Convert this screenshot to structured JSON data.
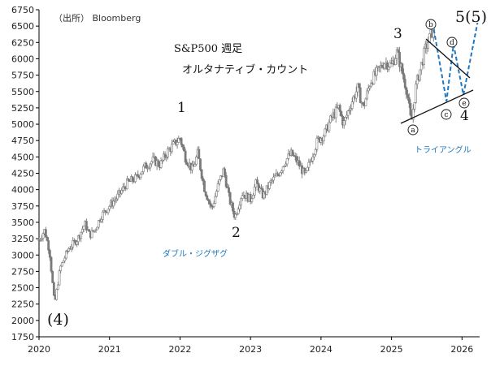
{
  "source": "（出所） Bloomberg",
  "title": "S&P500 週足",
  "subtitle": "オルタナティブ・カウント",
  "labels": {
    "zigzag": "ダブル・ジグザグ",
    "triangle": "トライアングル"
  },
  "colors": {
    "candle": "#7a7a7a",
    "blue": "#1f78c1",
    "axis": "#000000"
  },
  "chart_data": {
    "type": "candlestick",
    "x_axis": {
      "ticks": [
        "2020",
        "2021",
        "2022",
        "2023",
        "2024",
        "2025",
        "2026"
      ],
      "range": [
        2020.0,
        2026.25
      ]
    },
    "y_axis": {
      "ticks": [
        1750,
        2000,
        2250,
        2500,
        2750,
        3000,
        3250,
        3500,
        3750,
        4000,
        4250,
        4500,
        4750,
        5000,
        5250,
        5500,
        5750,
        6000,
        6250,
        6500,
        6750
      ],
      "range": [
        1750,
        6750
      ]
    },
    "price_path": [
      [
        2020.0,
        3230
      ],
      [
        2020.08,
        3380
      ],
      [
        2020.15,
        3050
      ],
      [
        2020.22,
        2240
      ],
      [
        2020.3,
        2800
      ],
      [
        2020.42,
        3100
      ],
      [
        2020.55,
        3250
      ],
      [
        2020.65,
        3480
      ],
      [
        2020.72,
        3300
      ],
      [
        2020.8,
        3400
      ],
      [
        2020.88,
        3600
      ],
      [
        2021.0,
        3750
      ],
      [
        2021.12,
        3900
      ],
      [
        2021.25,
        4100
      ],
      [
        2021.38,
        4180
      ],
      [
        2021.5,
        4350
      ],
      [
        2021.62,
        4450
      ],
      [
        2021.72,
        4380
      ],
      [
        2021.82,
        4580
      ],
      [
        2021.92,
        4700
      ],
      [
        2022.0,
        4790
      ],
      [
        2022.08,
        4480
      ],
      [
        2022.18,
        4300
      ],
      [
        2022.25,
        4550
      ],
      [
        2022.35,
        4000
      ],
      [
        2022.45,
        3700
      ],
      [
        2022.55,
        4100
      ],
      [
        2022.62,
        4300
      ],
      [
        2022.7,
        3850
      ],
      [
        2022.78,
        3580
      ],
      [
        2022.88,
        3950
      ],
      [
        2023.0,
        3850
      ],
      [
        2023.08,
        4100
      ],
      [
        2023.18,
        3900
      ],
      [
        2023.28,
        4100
      ],
      [
        2023.4,
        4250
      ],
      [
        2023.5,
        4450
      ],
      [
        2023.58,
        4550
      ],
      [
        2023.68,
        4400
      ],
      [
        2023.78,
        4200
      ],
      [
        2023.85,
        4450
      ],
      [
        2023.95,
        4750
      ],
      [
        2024.05,
        4850
      ],
      [
        2024.15,
        5100
      ],
      [
        2024.25,
        5250
      ],
      [
        2024.32,
        5000
      ],
      [
        2024.42,
        5300
      ],
      [
        2024.52,
        5550
      ],
      [
        2024.6,
        5250
      ],
      [
        2024.7,
        5650
      ],
      [
        2024.8,
        5800
      ],
      [
        2024.9,
        5950
      ],
      [
        2025.0,
        5900
      ],
      [
        2025.08,
        6100
      ],
      [
        2025.15,
        5800
      ],
      [
        2025.22,
        5500
      ],
      [
        2025.28,
        5000
      ],
      [
        2025.35,
        5600
      ],
      [
        2025.42,
        5900
      ],
      [
        2025.48,
        6150
      ],
      [
        2025.55,
        6350
      ],
      [
        2025.6,
        6450
      ]
    ],
    "wave_labels": [
      {
        "label": "(4)",
        "x": 2020.22,
        "y": 2240
      },
      {
        "label": "1",
        "x": 2022.0,
        "y": 4790
      },
      {
        "label": "2",
        "x": 2022.78,
        "y": 3580
      },
      {
        "label": "3",
        "x": 2025.08,
        "y": 6100
      },
      {
        "label": "4",
        "x": 2026.0,
        "y": 5250
      },
      {
        "label": "5(5)",
        "x": 2026.0,
        "y": 6500
      }
    ],
    "triangle_labels": [
      "ⓐ",
      "ⓑ",
      "ⓒ",
      "ⓓ",
      "ⓔ"
    ],
    "projection": [
      [
        2025.6,
        6450
      ],
      [
        2025.78,
        5350
      ],
      [
        2025.88,
        6220
      ],
      [
        2026.02,
        5450
      ],
      [
        2026.22,
        6550
      ]
    ]
  }
}
